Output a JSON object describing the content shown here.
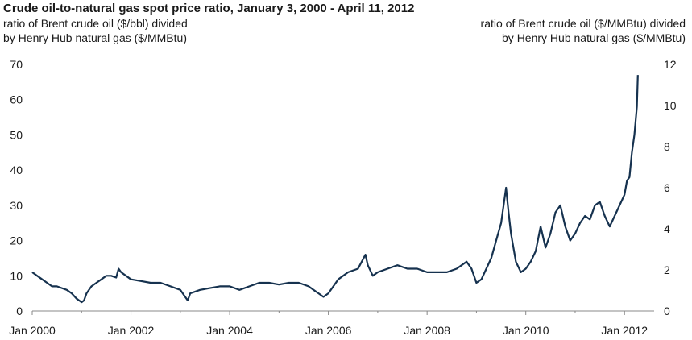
{
  "chart_data": {
    "type": "line",
    "title": "Crude oil-to-natural gas spot price ratio, January 3, 2000 - April 11, 2012",
    "ylabel_left": "ratio of Brent crude oil ($/bbl) divided\nby Henry Hub natural gas ($/MMBtu)",
    "ylabel_right": "ratio of Brent crude oil ($/MMBtu) divided\nby Henry Hub natural gas ($/MMBtu)",
    "xlabel": "",
    "x_ticks": [
      "Jan 2000",
      "Jan 2002",
      "Jan 2004",
      "Jan 2006",
      "Jan 2008",
      "Jan 2010",
      "Jan 2012"
    ],
    "y_left_ticks": [
      "0",
      "10",
      "20",
      "30",
      "40",
      "50",
      "60",
      "70"
    ],
    "y_right_ticks": [
      "0",
      "2",
      "4",
      "6",
      "8",
      "10",
      "12"
    ],
    "ylim_left": [
      0,
      70
    ],
    "ylim_right": [
      0,
      12
    ],
    "xlim": [
      2000.0,
      2012.6
    ],
    "line_color": "#16324f",
    "series": [
      {
        "x": [
          2000.0,
          2000.1,
          2000.2,
          2000.3,
          2000.4,
          2000.5,
          2000.6,
          2000.7,
          2000.8,
          2000.9,
          2001.0,
          2001.05,
          2001.1,
          2001.2,
          2001.3,
          2001.4,
          2001.5,
          2001.6,
          2001.7,
          2001.75,
          2001.8,
          2001.9,
          2002.0,
          2002.2,
          2002.4,
          2002.6,
          2002.8,
          2003.0,
          2003.1,
          2003.15,
          2003.2,
          2003.4,
          2003.6,
          2003.8,
          2004.0,
          2004.2,
          2004.4,
          2004.6,
          2004.8,
          2005.0,
          2005.2,
          2005.4,
          2005.6,
          2005.7,
          2005.8,
          2005.9,
          2006.0,
          2006.2,
          2006.4,
          2006.6,
          2006.75,
          2006.8,
          2006.9,
          2007.0,
          2007.2,
          2007.4,
          2007.6,
          2007.8,
          2008.0,
          2008.2,
          2008.4,
          2008.6,
          2008.8,
          2008.9,
          2009.0,
          2009.1,
          2009.2,
          2009.3,
          2009.4,
          2009.5,
          2009.6,
          2009.65,
          2009.7,
          2009.8,
          2009.9,
          2010.0,
          2010.1,
          2010.2,
          2010.3,
          2010.4,
          2010.5,
          2010.6,
          2010.7,
          2010.8,
          2010.9,
          2011.0,
          2011.1,
          2011.2,
          2011.3,
          2011.4,
          2011.5,
          2011.6,
          2011.7,
          2011.8,
          2011.9,
          2012.0,
          2012.05,
          2012.1,
          2012.15,
          2012.2,
          2012.25,
          2012.27
        ],
        "values": [
          11,
          10,
          9,
          8,
          7,
          7,
          6.5,
          6,
          5,
          3.5,
          2.5,
          3,
          5,
          7,
          8,
          9,
          10,
          10,
          9.5,
          12,
          11,
          10,
          9,
          8.5,
          8,
          8,
          7,
          6,
          4,
          3,
          5,
          6,
          6.5,
          7,
          7,
          6,
          7,
          8,
          8,
          7.5,
          8,
          8,
          7,
          6,
          5,
          4,
          5,
          9,
          11,
          12,
          16,
          13,
          10,
          11,
          12,
          13,
          12,
          12,
          11,
          11,
          11,
          12,
          14,
          12,
          8,
          9,
          12,
          15,
          20,
          25,
          35,
          28,
          22,
          14,
          11,
          12,
          14,
          17,
          24,
          18,
          22,
          28,
          30,
          24,
          20,
          22,
          25,
          27,
          26,
          30,
          31,
          27,
          24,
          27,
          30,
          33,
          37,
          38,
          45,
          50,
          58,
          67
        ]
      }
    ]
  }
}
